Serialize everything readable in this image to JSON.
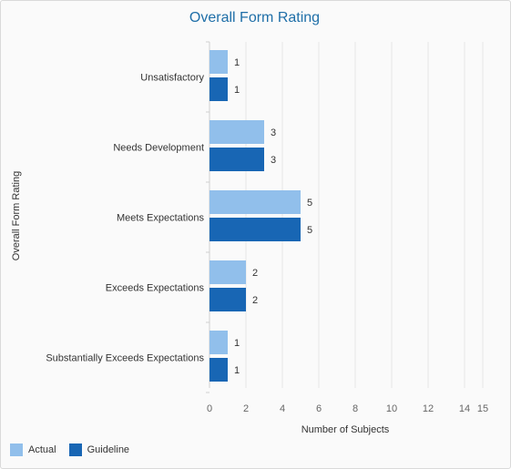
{
  "chart_data": {
    "type": "bar",
    "orientation": "horizontal",
    "title": "Overall Form Rating",
    "ylabel": "Overall Form Rating",
    "xlabel": "Number of Subjects",
    "categories": [
      "Unsatisfactory",
      "Needs Development",
      "Meets Expectations",
      "Exceeds Expectations",
      "Substantially Exceeds Expectations"
    ],
    "series": [
      {
        "name": "Actual",
        "color": "#91bfeb",
        "values": [
          1,
          3,
          5,
          2,
          1
        ]
      },
      {
        "name": "Guideline",
        "color": "#1866b4",
        "values": [
          1,
          3,
          5,
          2,
          1
        ]
      }
    ],
    "xlim": [
      0,
      15
    ],
    "xticks": [
      0,
      2,
      4,
      6,
      8,
      10,
      12,
      14,
      15
    ],
    "grid": true,
    "data_labels": true,
    "legend_position": "bottom-left"
  }
}
